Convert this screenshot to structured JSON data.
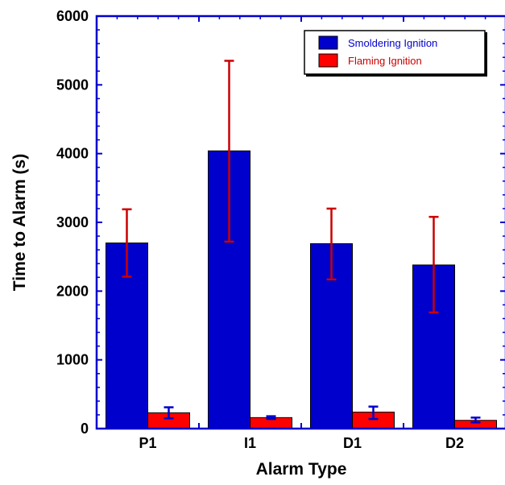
{
  "chart_data": {
    "type": "bar",
    "title": "",
    "xlabel": "Alarm Type",
    "ylabel": "Time to Alarm (s)",
    "ylim": [
      0,
      6000
    ],
    "yticks": [
      0,
      1000,
      2000,
      3000,
      4000,
      5000,
      6000
    ],
    "categories": [
      "P1",
      "I1",
      "D1",
      "D2"
    ],
    "series": [
      {
        "name": "Smoldering Ignition",
        "color": "#0000cc",
        "values": [
          2700,
          4040,
          2690,
          2380
        ],
        "error_low": [
          2210,
          2720,
          2170,
          1690
        ],
        "error_high": [
          3190,
          5350,
          3200,
          3080
        ],
        "error_color": "#cc0000"
      },
      {
        "name": "Flaming Ignition",
        "color": "#ff0000",
        "values": [
          230,
          160,
          240,
          120
        ],
        "error_low": [
          150,
          140,
          140,
          90
        ],
        "error_high": [
          310,
          180,
          320,
          160
        ],
        "error_color": "#0000cc"
      }
    ],
    "legend_position": "top-right",
    "grid": false
  }
}
